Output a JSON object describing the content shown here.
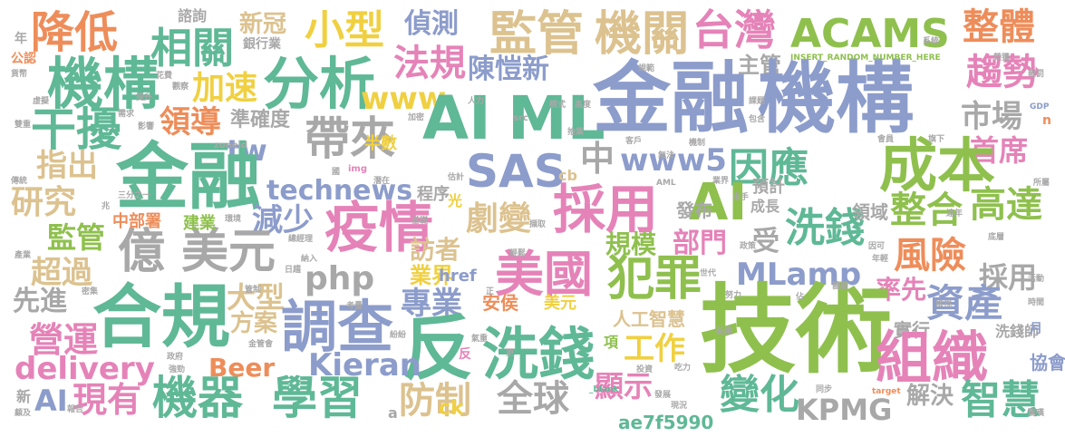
{
  "colors": {
    "green": "#8fc04e",
    "blue": "#8c9ccb",
    "orange": "#ee8d5a",
    "pink": "#e583b8",
    "teal": "#5fb896",
    "yellow": "#f0d041",
    "tan": "#dcc28f",
    "gray": "#a8a8a8",
    "background": "#ffffff"
  },
  "words": [
    {
      "text": "降低",
      "color": "orange"
    },
    {
      "text": "機構",
      "color": "teal"
    },
    {
      "text": "相關",
      "color": "teal"
    },
    {
      "text": "新冠",
      "color": "tan"
    },
    {
      "text": "小型",
      "color": "yellow"
    },
    {
      "text": "偵測",
      "color": "blue"
    },
    {
      "text": "監管",
      "color": "tan"
    },
    {
      "text": "機關",
      "color": "tan"
    },
    {
      "text": "台灣",
      "color": "pink"
    },
    {
      "text": "ACAMS",
      "color": "green"
    },
    {
      "text": "整體",
      "color": "orange"
    },
    {
      "text": "分析",
      "color": "teal"
    },
    {
      "text": "法規",
      "color": "pink"
    },
    {
      "text": "陳愷新",
      "color": "blue"
    },
    {
      "text": "主管",
      "color": "gray"
    },
    {
      "text": "趨勢",
      "color": "pink"
    },
    {
      "text": "加速",
      "color": "yellow"
    },
    {
      "text": "www",
      "color": "yellow"
    },
    {
      "text": "金融",
      "color": "blue"
    },
    {
      "text": "機構",
      "color": "blue"
    },
    {
      "text": "干擾",
      "color": "teal"
    },
    {
      "text": "領導",
      "color": "orange"
    },
    {
      "text": "AI",
      "color": "teal"
    },
    {
      "text": "ML",
      "color": "teal"
    },
    {
      "text": "市場",
      "color": "gray"
    },
    {
      "text": "帶來",
      "color": "gray"
    },
    {
      "text": "準確度",
      "color": "gray"
    },
    {
      "text": "tw",
      "color": "blue"
    },
    {
      "text": "首席",
      "color": "pink"
    },
    {
      "text": "金融",
      "color": "teal"
    },
    {
      "text": "指出",
      "color": "tan"
    },
    {
      "text": "SAS",
      "color": "blue"
    },
    {
      "text": "中",
      "color": "gray"
    },
    {
      "text": "www5",
      "color": "blue"
    },
    {
      "text": "因應",
      "color": "teal"
    },
    {
      "text": "成本",
      "color": "green"
    },
    {
      "text": "研究",
      "color": "tan"
    },
    {
      "text": "technews",
      "color": "blue"
    },
    {
      "text": "採用",
      "color": "pink"
    },
    {
      "text": "AI",
      "color": "pink"
    },
    {
      "text": "整合",
      "color": "green"
    },
    {
      "text": "高達",
      "color": "green"
    },
    {
      "text": "疫情",
      "color": "pink"
    },
    {
      "text": "減少",
      "color": "blue"
    },
    {
      "text": "劇變",
      "color": "tan"
    },
    {
      "text": "洗錢",
      "color": "teal"
    },
    {
      "text": "監管",
      "color": "green"
    },
    {
      "text": "億",
      "color": "gray"
    },
    {
      "text": "美元",
      "color": "gray"
    },
    {
      "text": "訪者",
      "color": "tan"
    },
    {
      "text": "規模",
      "color": "green"
    },
    {
      "text": "部門",
      "color": "pink"
    },
    {
      "text": "受",
      "color": "gray"
    },
    {
      "text": "風險",
      "color": "orange"
    },
    {
      "text": "超過",
      "color": "tan"
    },
    {
      "text": "php",
      "color": "gray"
    },
    {
      "text": "美國",
      "color": "pink"
    },
    {
      "text": "犯罪",
      "color": "green"
    },
    {
      "text": "MLamp",
      "color": "blue"
    },
    {
      "text": "採用",
      "color": "gray"
    },
    {
      "text": "大型",
      "color": "tan"
    },
    {
      "text": "業界",
      "color": "yellow"
    },
    {
      "text": "先進",
      "color": "gray"
    },
    {
      "text": "合規",
      "color": "teal"
    },
    {
      "text": "專業",
      "color": "blue"
    },
    {
      "text": "率先",
      "color": "pink"
    },
    {
      "text": "資產",
      "color": "blue"
    },
    {
      "text": "方案",
      "color": "tan"
    },
    {
      "text": "調查",
      "color": "blue"
    },
    {
      "text": "反",
      "color": "teal"
    },
    {
      "text": "技術",
      "color": "green"
    },
    {
      "text": "營運",
      "color": "pink"
    },
    {
      "text": "人工智慧",
      "color": "tan"
    },
    {
      "text": "實行",
      "color": "gray"
    },
    {
      "text": "洗錢",
      "color": "teal"
    },
    {
      "text": "工作",
      "color": "yellow"
    },
    {
      "text": "組織",
      "color": "pink"
    },
    {
      "text": "delivery",
      "color": "pink"
    },
    {
      "text": "Beer",
      "color": "orange"
    },
    {
      "text": "Kieran",
      "color": "blue"
    },
    {
      "text": "AI",
      "color": "blue"
    },
    {
      "text": "現有",
      "color": "pink"
    },
    {
      "text": "機器",
      "color": "teal"
    },
    {
      "text": "學習",
      "color": "teal"
    },
    {
      "text": "防制",
      "color": "tan"
    },
    {
      "text": "全球",
      "color": "gray"
    },
    {
      "text": "顯示",
      "color": "pink"
    },
    {
      "text": "變化",
      "color": "teal"
    },
    {
      "text": "KPMG",
      "color": "gray"
    },
    {
      "text": "解決",
      "color": "gray"
    },
    {
      "text": "智慧",
      "color": "teal"
    },
    {
      "text": "協會",
      "color": "blue"
    },
    {
      "text": "洗錢師",
      "color": "gray"
    },
    {
      "text": "ae7f5990",
      "color": "teal"
    },
    {
      "text": "ck",
      "color": "yellow"
    },
    {
      "text": "href",
      "color": "blue"
    },
    {
      "text": "安侯",
      "color": "orange"
    },
    {
      "text": "美元",
      "color": "yellow"
    },
    {
      "text": "發布",
      "color": "gray"
    },
    {
      "text": "預計",
      "color": "gray"
    },
    {
      "text": "成長",
      "color": "gray"
    },
    {
      "text": "領域",
      "color": "gray"
    },
    {
      "text": "程序",
      "color": "gray"
    },
    {
      "text": "半數",
      "color": "yellow"
    },
    {
      "text": "中部署",
      "color": "orange"
    },
    {
      "text": "建業",
      "color": "green"
    },
    {
      "text": "銀行業",
      "color": "gray"
    },
    {
      "text": "諮詢",
      "color": "gray"
    },
    {
      "text": "公認",
      "color": "orange"
    },
    {
      "text": "年",
      "color": "gray"
    },
    {
      "text": "新",
      "color": "gray"
    },
    {
      "text": "光",
      "color": "yellow"
    },
    {
      "text": "cb",
      "color": "tan"
    },
    {
      "text": "項",
      "color": "green"
    },
    {
      "text": "INSERT_RANDOM_NUMBER_HERE",
      "color": "green"
    },
    {
      "text": "月",
      "color": "blue"
    },
    {
      "text": "n",
      "color": "orange"
    },
    {
      "text": "a",
      "color": "gray"
    },
    {
      "text": "反",
      "color": "pink"
    },
    {
      "text": "src",
      "color": "gray"
    },
    {
      "text": "img",
      "color": "pink"
    },
    {
      "text": "zoneid",
      "color": "gray"
    },
    {
      "text": "_blank",
      "color": "teal"
    },
    {
      "text": "target",
      "color": "orange"
    },
    {
      "text": "AML",
      "color": "gray"
    },
    {
      "text": "GDP",
      "color": "blue"
    },
    {
      "text": "所屬",
      "color": "gray"
    },
    {
      "text": "時間",
      "color": "gray"
    },
    {
      "text": "三分之一",
      "color": "gray"
    },
    {
      "text": "潛在",
      "color": "gray"
    },
    {
      "text": "估計",
      "color": "gray"
    },
    {
      "text": "加密",
      "color": "gray"
    },
    {
      "text": "人力",
      "color": "gray"
    },
    {
      "text": "模式",
      "color": "gray"
    },
    {
      "text": "拾業",
      "color": "gray"
    },
    {
      "text": "客戶",
      "color": "gray"
    },
    {
      "text": "機制",
      "color": "gray"
    },
    {
      "text": "課題",
      "color": "gray"
    },
    {
      "text": "包含",
      "color": "gray"
    },
    {
      "text": "旗下",
      "color": "gray"
    },
    {
      "text": "影響",
      "color": "gray"
    },
    {
      "text": "需求",
      "color": "gray"
    },
    {
      "text": "提升",
      "color": "gray"
    },
    {
      "text": "觀察",
      "color": "gray"
    },
    {
      "text": "花費",
      "color": "gray"
    },
    {
      "text": "貨幣",
      "color": "gray"
    },
    {
      "text": "虛擬",
      "color": "gray"
    },
    {
      "text": "環境",
      "color": "gray"
    },
    {
      "text": "總經理",
      "color": "gray"
    },
    {
      "text": "日趨",
      "color": "gray"
    },
    {
      "text": "納入",
      "color": "gray"
    },
    {
      "text": "密集",
      "color": "gray"
    },
    {
      "text": "管制",
      "color": "gray"
    },
    {
      "text": "考量",
      "color": "gray"
    },
    {
      "text": "政府",
      "color": "gray"
    },
    {
      "text": "強勁",
      "color": "gray"
    },
    {
      "text": "報告",
      "color": "gray"
    },
    {
      "text": "紛紛",
      "color": "gray"
    },
    {
      "text": "金管會",
      "color": "gray"
    },
    {
      "text": "氣重",
      "color": "gray"
    },
    {
      "text": "投資",
      "color": "gray"
    },
    {
      "text": "吃力",
      "color": "gray"
    },
    {
      "text": "發展",
      "color": "gray"
    },
    {
      "text": "現況",
      "color": "gray"
    },
    {
      "text": "新趨",
      "color": "gray"
    },
    {
      "text": "努力",
      "color": "gray"
    },
    {
      "text": "世代",
      "color": "gray"
    },
    {
      "text": "體驗",
      "color": "gray"
    },
    {
      "text": "底層",
      "color": "gray"
    },
    {
      "text": "因可",
      "color": "gray"
    },
    {
      "text": "年輕",
      "color": "gray"
    },
    {
      "text": "連年",
      "color": "gray"
    },
    {
      "text": "驚嘆",
      "color": "gray"
    },
    {
      "text": "同步",
      "color": "gray"
    },
    {
      "text": "顧及",
      "color": "gray"
    },
    {
      "text": "產業",
      "color": "gray"
    },
    {
      "text": "傳統",
      "color": "gray"
    },
    {
      "text": "基礎",
      "color": "gray"
    },
    {
      "text": "輕鬆",
      "color": "gray"
    },
    {
      "text": "擷取",
      "color": "gray"
    },
    {
      "text": "政策",
      "color": "gray"
    },
    {
      "text": "活動",
      "color": "gray"
    },
    {
      "text": "檢視",
      "color": "gray"
    },
    {
      "text": "裁罰",
      "color": "gray"
    },
    {
      "text": "系統",
      "color": "gray"
    },
    {
      "text": "榮獲",
      "color": "gray"
    },
    {
      "text": "業界",
      "color": "gray"
    },
    {
      "text": "高度",
      "color": "gray"
    },
    {
      "text": "雙重",
      "color": "gray"
    },
    {
      "text": "正",
      "color": "gray"
    },
    {
      "text": "更",
      "color": "gray"
    },
    {
      "text": "兆",
      "color": "gray"
    },
    {
      "text": "佔",
      "color": "gray"
    },
    {
      "text": "國",
      "color": "gray"
    },
    {
      "text": "出手",
      "color": "gray"
    },
    {
      "text": "無法",
      "color": "gray"
    },
    {
      "text": "規範",
      "color": "gray"
    },
    {
      "text": "會員",
      "color": "gray"
    },
    {
      "text": "課報",
      "color": "gray"
    },
    {
      "text": "原本",
      "color": "gray"
    }
  ]
}
